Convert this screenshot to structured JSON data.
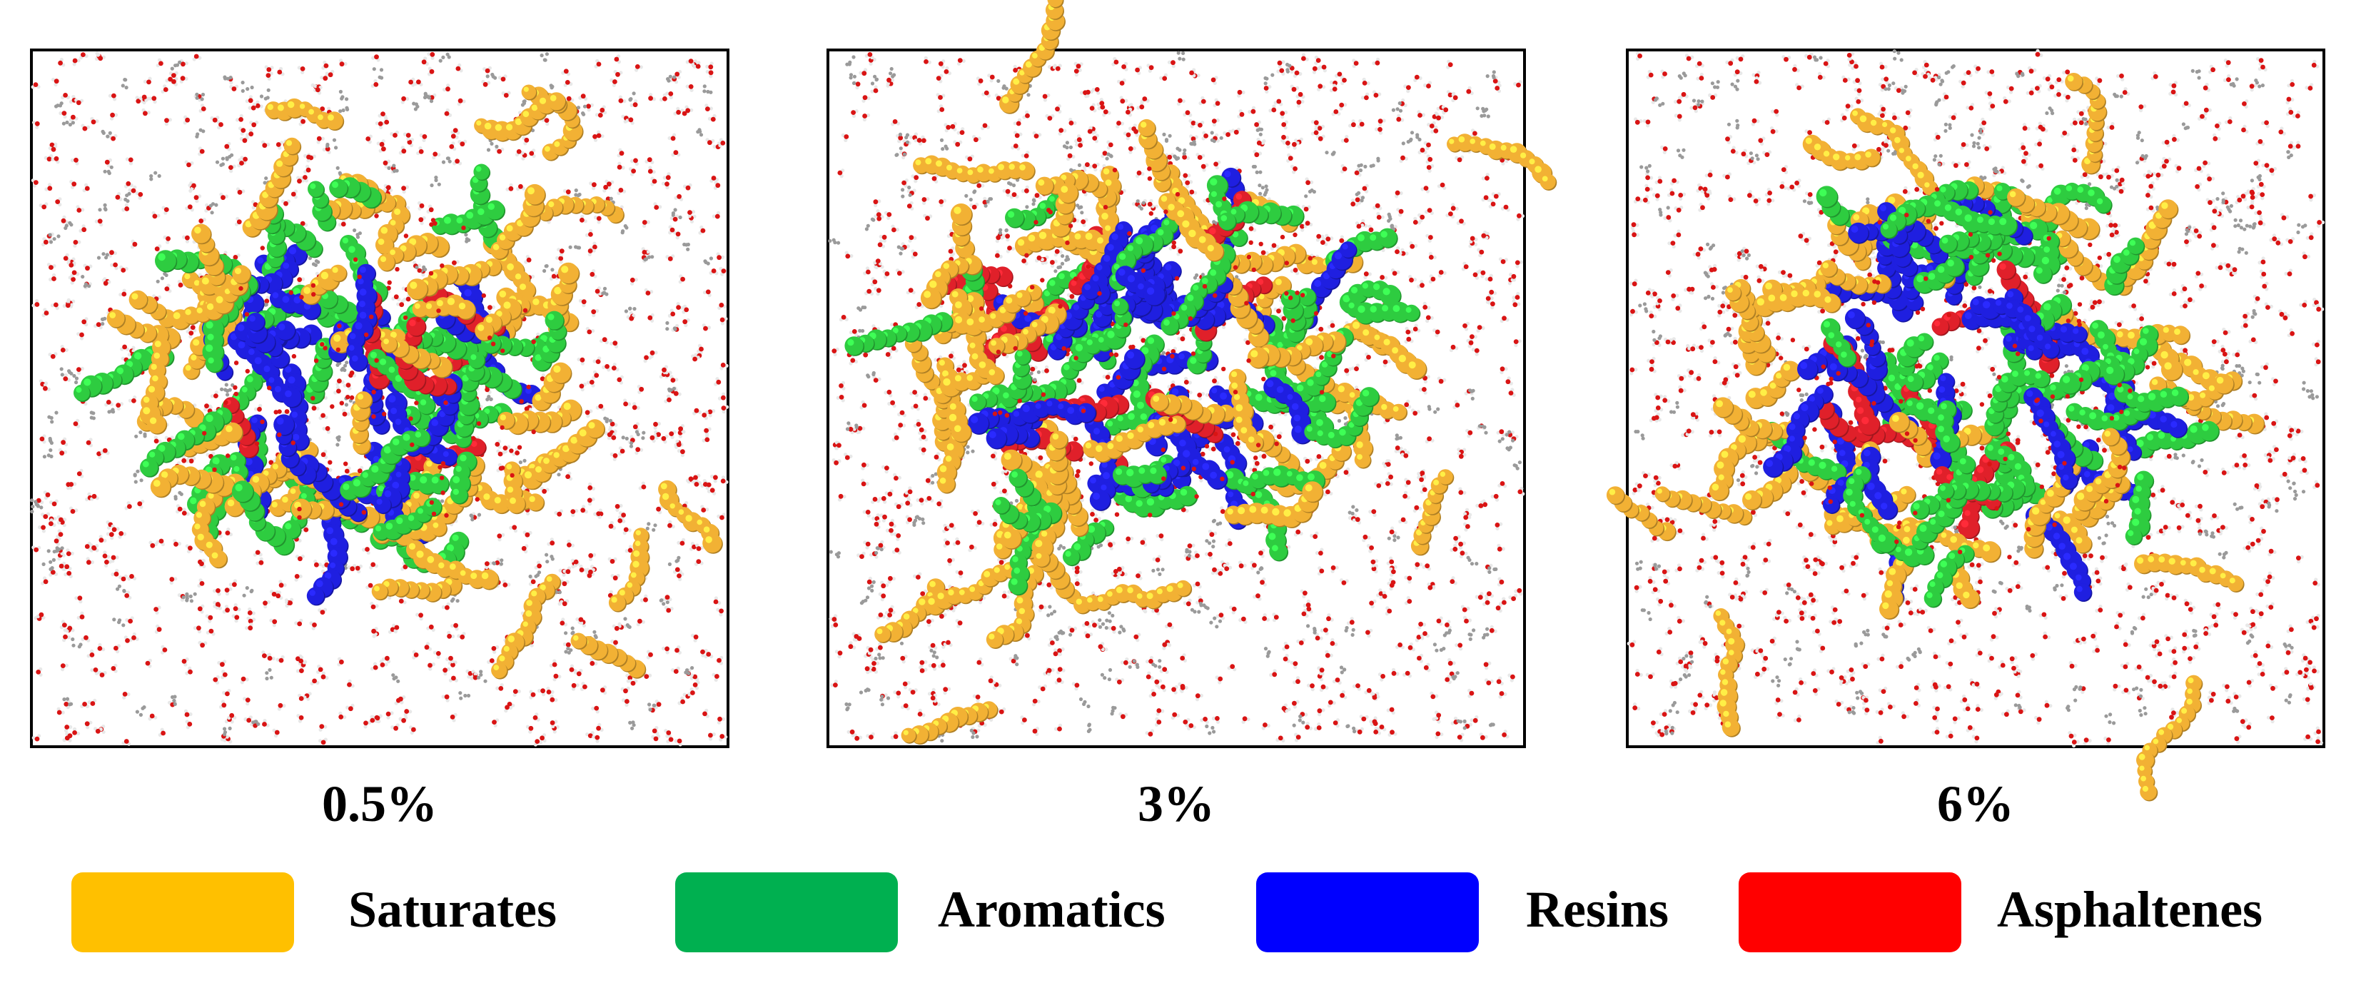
{
  "panels": [
    {
      "label": "0.5%",
      "seed": 11,
      "cluster": "compact",
      "asphaltene_share": 0.06
    },
    {
      "label": "3%",
      "seed": 37,
      "cluster": "dense",
      "asphaltene_share": 0.1
    },
    {
      "label": "6%",
      "seed": 73,
      "cluster": "loose",
      "asphaltene_share": 0.16
    }
  ],
  "legend": [
    {
      "label": "Saturates",
      "color": "#FFC000"
    },
    {
      "label": "Aromatics",
      "color": "#00B050"
    },
    {
      "label": "Resins",
      "color": "#0000FF"
    },
    {
      "label": "Asphaltenes",
      "color": "#FF0000"
    }
  ],
  "colors": {
    "saturates_molecule": "#F2B134",
    "aromatics_molecule": "#2ECC40",
    "resins_molecule": "#1F1FE0",
    "asphaltenes_molecule": "#E0202A",
    "water_oxygen": "#D91414",
    "water_hydrogen": "#E8E8E8",
    "frame": "#000000"
  }
}
